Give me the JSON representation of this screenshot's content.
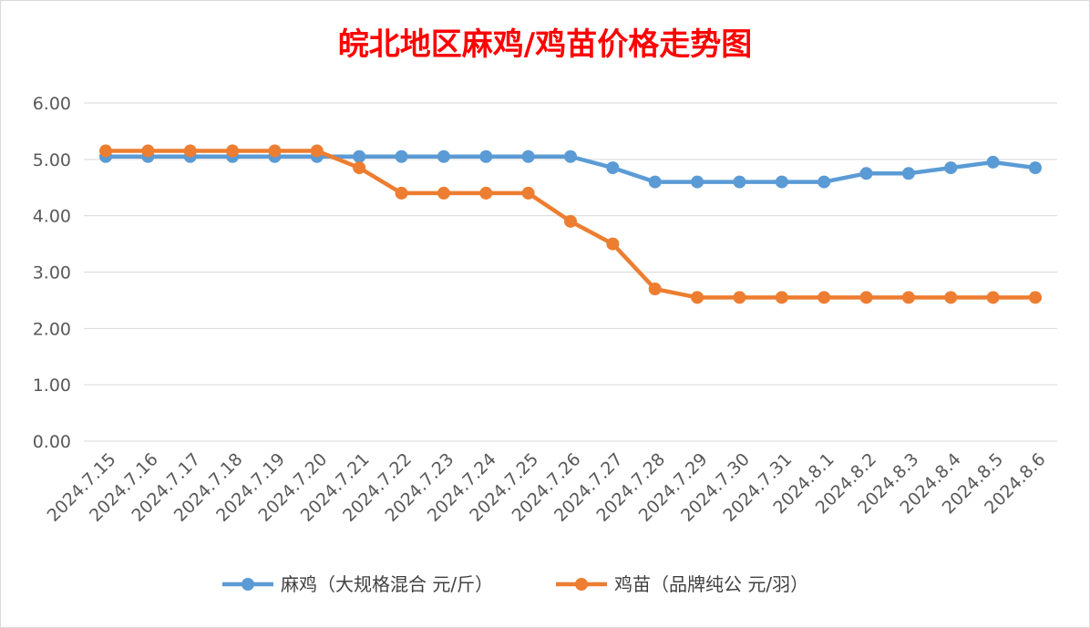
{
  "chart_data": {
    "type": "line",
    "title": "皖北地区麻鸡/鸡苗价格走势图",
    "title_color": "#ff0000",
    "xlabel": "",
    "ylabel": "",
    "ylim": [
      0,
      6
    ],
    "yticks": [
      "0.00",
      "1.00",
      "2.00",
      "3.00",
      "4.00",
      "5.00",
      "6.00"
    ],
    "grid": true,
    "legend_position": "bottom",
    "categories": [
      "2024.7.15",
      "2024.7.16",
      "2024.7.17",
      "2024.7.18",
      "2024.7.19",
      "2024.7.20",
      "2024.7.21",
      "2024.7.22",
      "2024.7.23",
      "2024.7.24",
      "2024.7.25",
      "2024.7.26",
      "2024.7.27",
      "2024.7.28",
      "2024.7.29",
      "2024.7.30",
      "2024.7.31",
      "2024.8.1",
      "2024.8.2",
      "2024.8.3",
      "2024.8.4",
      "2024.8.5",
      "2024.8.6"
    ],
    "series": [
      {
        "name": "麻鸡（大规格混合 元/斤）",
        "color": "#5b9bd5",
        "values": [
          5.05,
          5.05,
          5.05,
          5.05,
          5.05,
          5.05,
          5.05,
          5.05,
          5.05,
          5.05,
          5.05,
          5.05,
          4.85,
          4.6,
          4.6,
          4.6,
          4.6,
          4.6,
          4.75,
          4.75,
          4.85,
          4.95,
          4.85
        ]
      },
      {
        "name": "鸡苗（品牌纯公 元/羽）",
        "color": "#ed7d31",
        "values": [
          5.15,
          5.15,
          5.15,
          5.15,
          5.15,
          5.15,
          4.85,
          4.4,
          4.4,
          4.4,
          4.4,
          3.9,
          3.5,
          2.7,
          2.55,
          2.55,
          2.55,
          2.55,
          2.55,
          2.55,
          2.55,
          2.55,
          2.55
        ]
      }
    ]
  }
}
